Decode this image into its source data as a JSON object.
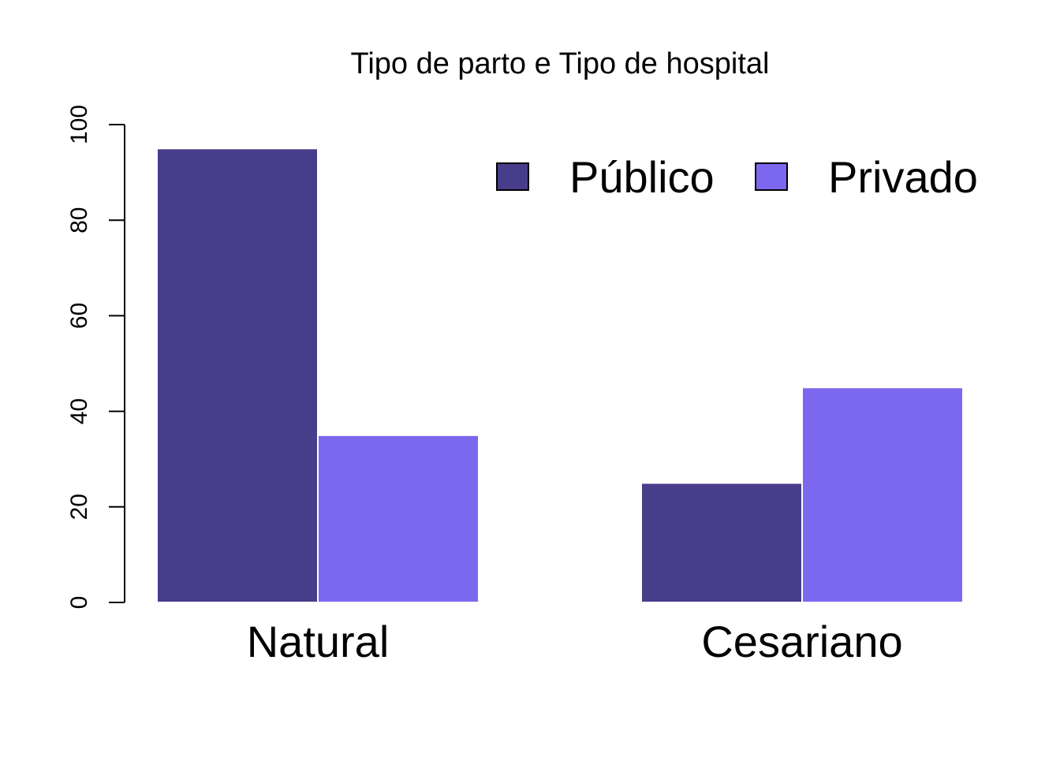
{
  "chart_data": {
    "type": "bar",
    "title": "Tipo de parto e Tipo de hospital",
    "xlabel": "",
    "ylabel": "",
    "categories": [
      "Natural",
      "Cesariano"
    ],
    "series": [
      {
        "name": "Público",
        "values": [
          95,
          25
        ],
        "color": "#483D8B"
      },
      {
        "name": "Privado",
        "values": [
          35,
          45
        ],
        "color": "#7B68EE"
      }
    ],
    "ylim": [
      0,
      100
    ],
    "yticks": [
      "0",
      "20",
      "40",
      "60",
      "80",
      "100"
    ],
    "grid": false,
    "legend_position": "top-right"
  }
}
